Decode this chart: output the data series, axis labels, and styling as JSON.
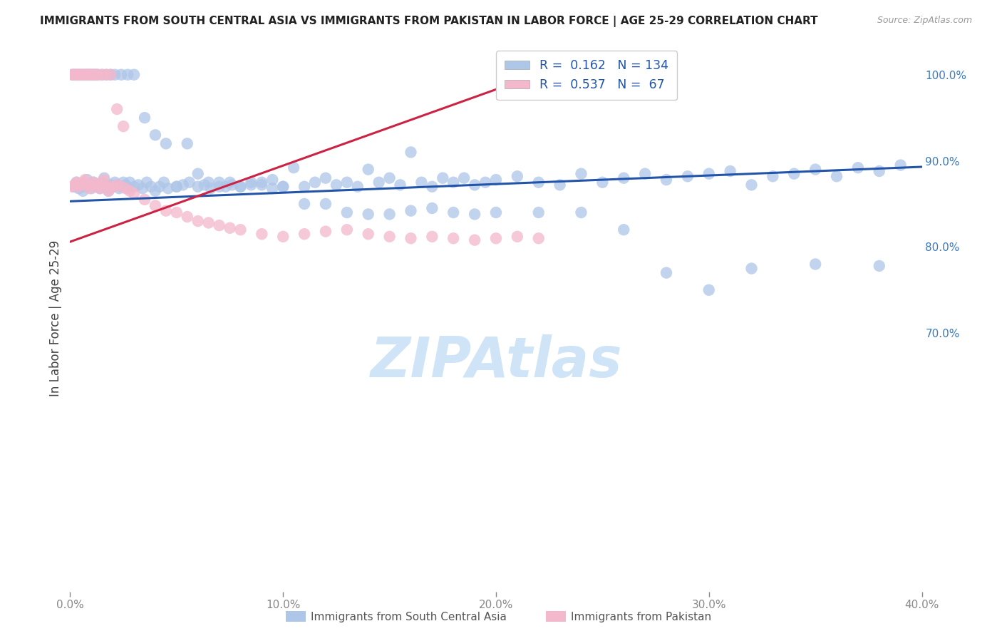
{
  "title": "IMMIGRANTS FROM SOUTH CENTRAL ASIA VS IMMIGRANTS FROM PAKISTAN IN LABOR FORCE | AGE 25-29 CORRELATION CHART",
  "source": "Source: ZipAtlas.com",
  "ylabel": "In Labor Force | Age 25-29",
  "xlim": [
    0.0,
    0.4
  ],
  "ylim": [
    0.4,
    1.035
  ],
  "xticks": [
    0.0,
    0.1,
    0.2,
    0.3,
    0.4
  ],
  "yticks_right": [
    1.0,
    0.9,
    0.8,
    0.7
  ],
  "legend": {
    "blue_r": "0.162",
    "blue_n": "134",
    "pink_r": "0.537",
    "pink_n": " 67"
  },
  "blue_color": "#aec6e8",
  "pink_color": "#f4b8cc",
  "blue_line_color": "#2255aa",
  "pink_line_color": "#cc2244",
  "watermark": "ZIPAtlas",
  "watermark_color": "#d0e4f7",
  "background": "#ffffff",
  "grid_color": "#d8d8d8",
  "blue_line": {
    "x0": 0.0,
    "x1": 0.4,
    "y0": 0.853,
    "y1": 0.893
  },
  "pink_line": {
    "x0": 0.0,
    "x1": 0.225,
    "y0": 0.806,
    "y1": 1.005
  },
  "blue_x": [
    0.002,
    0.003,
    0.004,
    0.005,
    0.006,
    0.007,
    0.008,
    0.009,
    0.01,
    0.011,
    0.012,
    0.013,
    0.014,
    0.015,
    0.016,
    0.017,
    0.018,
    0.019,
    0.02,
    0.021,
    0.022,
    0.023,
    0.024,
    0.025,
    0.026,
    0.027,
    0.028,
    0.03,
    0.032,
    0.034,
    0.036,
    0.038,
    0.04,
    0.042,
    0.044,
    0.046,
    0.05,
    0.053,
    0.056,
    0.06,
    0.063,
    0.066,
    0.07,
    0.073,
    0.076,
    0.08,
    0.085,
    0.09,
    0.095,
    0.1,
    0.105,
    0.11,
    0.115,
    0.12,
    0.125,
    0.13,
    0.135,
    0.14,
    0.145,
    0.15,
    0.155,
    0.16,
    0.165,
    0.17,
    0.175,
    0.18,
    0.185,
    0.19,
    0.195,
    0.2,
    0.21,
    0.22,
    0.23,
    0.24,
    0.25,
    0.26,
    0.27,
    0.28,
    0.29,
    0.3,
    0.31,
    0.32,
    0.33,
    0.34,
    0.35,
    0.36,
    0.37,
    0.38,
    0.39,
    0.001,
    0.002,
    0.003,
    0.004,
    0.005,
    0.006,
    0.007,
    0.008,
    0.009,
    0.01,
    0.011,
    0.012,
    0.013,
    0.015,
    0.017,
    0.019,
    0.021,
    0.024,
    0.027,
    0.03,
    0.035,
    0.04,
    0.045,
    0.05,
    0.055,
    0.06,
    0.065,
    0.07,
    0.075,
    0.08,
    0.085,
    0.09,
    0.095,
    0.1,
    0.11,
    0.12,
    0.13,
    0.14,
    0.15,
    0.16,
    0.17,
    0.18,
    0.19,
    0.2,
    0.22,
    0.24,
    0.26,
    0.28,
    0.3,
    0.32,
    0.35,
    0.38
  ],
  "blue_y": [
    0.87,
    0.875,
    0.868,
    0.872,
    0.865,
    0.87,
    0.878,
    0.872,
    0.868,
    0.875,
    0.87,
    0.872,
    0.868,
    0.875,
    0.88,
    0.87,
    0.865,
    0.872,
    0.87,
    0.875,
    0.872,
    0.868,
    0.87,
    0.875,
    0.872,
    0.868,
    0.875,
    0.87,
    0.872,
    0.868,
    0.875,
    0.87,
    0.865,
    0.87,
    0.875,
    0.868,
    0.87,
    0.872,
    0.875,
    0.87,
    0.872,
    0.868,
    0.875,
    0.87,
    0.872,
    0.87,
    0.875,
    0.872,
    0.868,
    0.87,
    0.892,
    0.87,
    0.875,
    0.88,
    0.872,
    0.875,
    0.87,
    0.89,
    0.875,
    0.88,
    0.872,
    0.91,
    0.875,
    0.87,
    0.88,
    0.875,
    0.88,
    0.872,
    0.875,
    0.878,
    0.882,
    0.875,
    0.872,
    0.885,
    0.875,
    0.88,
    0.885,
    0.878,
    0.882,
    0.885,
    0.888,
    0.872,
    0.882,
    0.885,
    0.89,
    0.882,
    0.892,
    0.888,
    0.895,
    1.0,
    1.0,
    1.0,
    1.0,
    1.0,
    1.0,
    1.0,
    1.0,
    1.0,
    1.0,
    1.0,
    1.0,
    1.0,
    1.0,
    1.0,
    1.0,
    1.0,
    1.0,
    1.0,
    1.0,
    0.95,
    0.93,
    0.92,
    0.87,
    0.92,
    0.885,
    0.875,
    0.87,
    0.875,
    0.87,
    0.872,
    0.875,
    0.878,
    0.87,
    0.85,
    0.85,
    0.84,
    0.838,
    0.838,
    0.842,
    0.845,
    0.84,
    0.838,
    0.84,
    0.84,
    0.84,
    0.82,
    0.77,
    0.75,
    0.775,
    0.78,
    0.778
  ],
  "pink_x": [
    0.001,
    0.002,
    0.003,
    0.004,
    0.005,
    0.006,
    0.007,
    0.008,
    0.009,
    0.01,
    0.011,
    0.012,
    0.013,
    0.014,
    0.015,
    0.016,
    0.017,
    0.018,
    0.019,
    0.02,
    0.022,
    0.024,
    0.026,
    0.028,
    0.03,
    0.035,
    0.04,
    0.045,
    0.05,
    0.055,
    0.06,
    0.065,
    0.07,
    0.075,
    0.08,
    0.09,
    0.1,
    0.11,
    0.12,
    0.13,
    0.14,
    0.15,
    0.16,
    0.17,
    0.18,
    0.19,
    0.2,
    0.21,
    0.22,
    0.001,
    0.002,
    0.003,
    0.004,
    0.005,
    0.006,
    0.007,
    0.008,
    0.009,
    0.01,
    0.011,
    0.012,
    0.013,
    0.015,
    0.017,
    0.019,
    0.022,
    0.025
  ],
  "pink_y": [
    0.87,
    0.872,
    0.875,
    0.87,
    0.872,
    0.875,
    0.878,
    0.872,
    0.868,
    0.872,
    0.875,
    0.87,
    0.872,
    0.868,
    0.875,
    0.878,
    0.87,
    0.865,
    0.868,
    0.87,
    0.872,
    0.87,
    0.868,
    0.865,
    0.862,
    0.855,
    0.848,
    0.842,
    0.84,
    0.835,
    0.83,
    0.828,
    0.825,
    0.822,
    0.82,
    0.815,
    0.812,
    0.815,
    0.818,
    0.82,
    0.815,
    0.812,
    0.81,
    0.812,
    0.81,
    0.808,
    0.81,
    0.812,
    0.81,
    1.0,
    1.0,
    1.0,
    1.0,
    1.0,
    1.0,
    1.0,
    1.0,
    1.0,
    1.0,
    1.0,
    1.0,
    1.0,
    1.0,
    1.0,
    1.0,
    0.96,
    0.94
  ]
}
